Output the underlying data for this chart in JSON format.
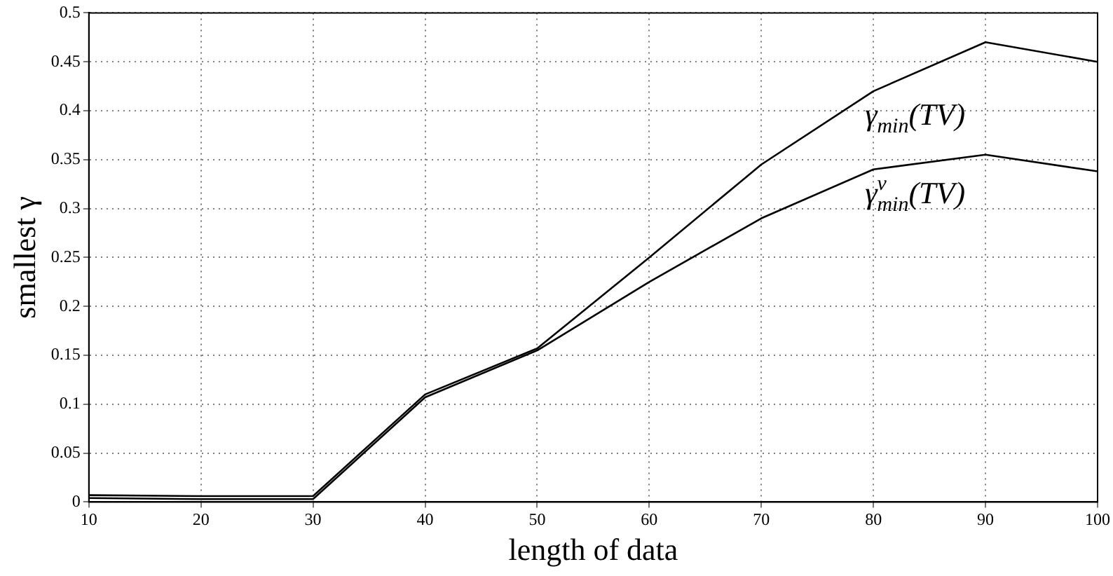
{
  "chart_data": {
    "type": "line",
    "xlabel": "length of data",
    "ylabel": "smallest γ",
    "x": [
      10,
      20,
      30,
      40,
      50,
      60,
      70,
      80,
      90,
      100
    ],
    "series": [
      {
        "name": "γ$_{min}$(TV)",
        "color": "#000000",
        "values": [
          0.007,
          0.006,
          0.006,
          0.11,
          0.157,
          0.25,
          0.345,
          0.42,
          0.47,
          0.45
        ]
      },
      {
        "name": "γ$^{ν}$$_{min}$(TV)",
        "color": "#000000",
        "values": [
          0.004,
          0.003,
          0.003,
          0.107,
          0.155,
          0.225,
          0.29,
          0.34,
          0.355,
          0.338
        ]
      }
    ],
    "xlim": [
      10,
      100
    ],
    "xticks": [
      10,
      20,
      30,
      40,
      50,
      60,
      70,
      80,
      90,
      100
    ],
    "ylim": [
      0,
      0.5
    ],
    "yticks": [
      0,
      0.05,
      0.1,
      0.15,
      0.2,
      0.25,
      0.3,
      0.35,
      0.4,
      0.45,
      0.5
    ],
    "grid": true,
    "legend": false,
    "marker": "none",
    "line_style": "solid"
  }
}
